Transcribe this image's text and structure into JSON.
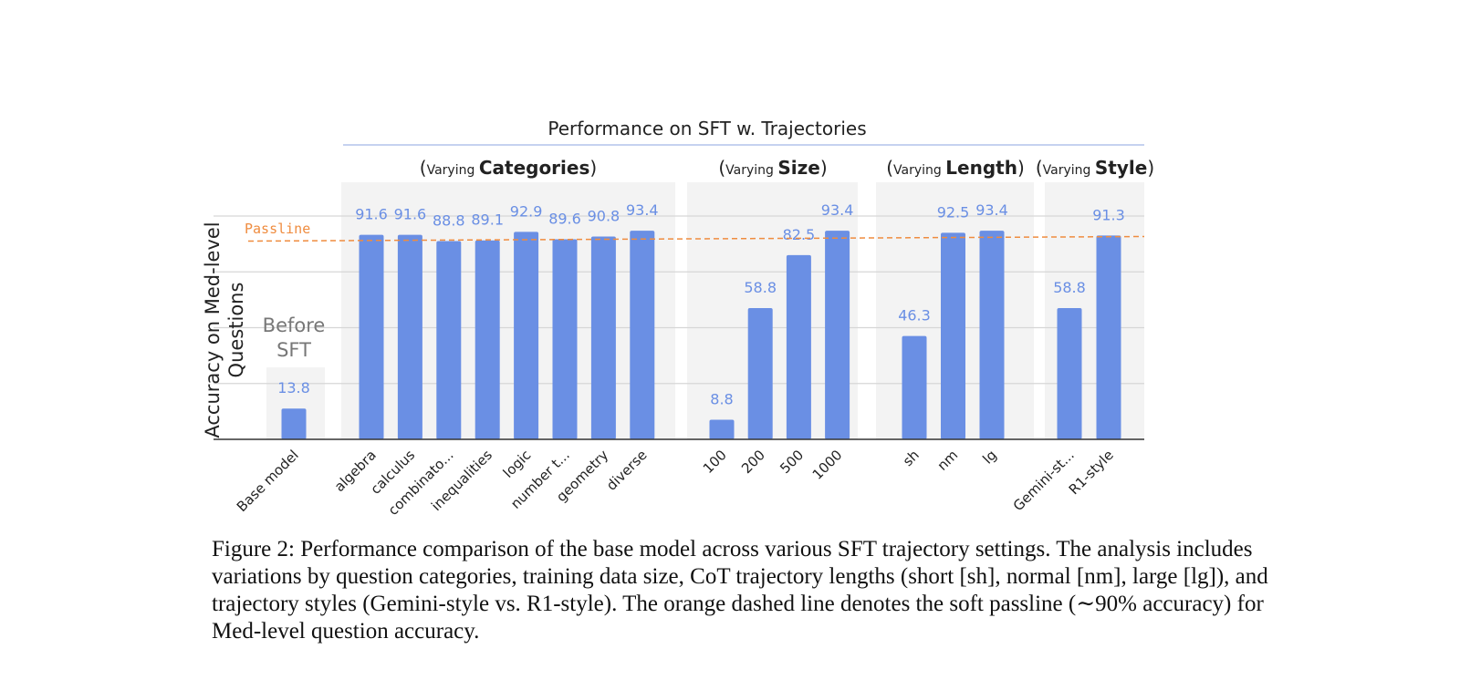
{
  "chart_data": {
    "type": "bar",
    "title": "Performance on SFT w. Trajectories",
    "ylabel": "Accuracy on Med-level Questions",
    "ylabel_lines": [
      "Accuracy on Med-level",
      "Questions"
    ],
    "ylim": [
      0,
      100
    ],
    "grid": true,
    "gridlines": [
      0,
      25,
      50,
      75,
      100
    ],
    "bar_color": "#6a8fe4",
    "label_color": "#6a8fe4",
    "passline": {
      "label": "Passline",
      "value": 90,
      "color": "#ef8c3f"
    },
    "groups": [
      {
        "name": "base",
        "header_prefix": "",
        "header_bold": "",
        "panel_label": [
          "Before",
          "SFT"
        ],
        "categories": [
          "Base model"
        ],
        "values": [
          13.8
        ]
      },
      {
        "name": "categories",
        "header_prefix": "Varying",
        "header_bold": "Categories",
        "categories": [
          "algebra",
          "calculus",
          "combinato...",
          "inequalities",
          "logic",
          "number t...",
          "geometry",
          "diverse"
        ],
        "values": [
          91.6,
          91.6,
          88.8,
          89.1,
          92.9,
          89.6,
          90.8,
          93.4
        ]
      },
      {
        "name": "size",
        "header_prefix": "Varying",
        "header_bold": "Size",
        "categories": [
          "100",
          "200",
          "500",
          "1000"
        ],
        "values": [
          8.8,
          58.8,
          82.5,
          93.4
        ]
      },
      {
        "name": "length",
        "header_prefix": "Varying",
        "header_bold": "Length",
        "categories": [
          "sh",
          "nm",
          "lg"
        ],
        "values": [
          46.3,
          92.5,
          93.4
        ]
      },
      {
        "name": "style",
        "header_prefix": "Varying",
        "header_bold": "Style",
        "categories": [
          "Gemini-st...",
          "R1-style"
        ],
        "values": [
          58.8,
          91.3
        ]
      }
    ]
  },
  "caption": {
    "label": "Figure 2:",
    "text": "Performance comparison of the base model across various SFT trajectory settings. The analysis includes variations by question categories, training data size, CoT trajectory lengths (short [sh], normal [nm], large [lg]), and trajectory styles (Gemini-style vs. R1-style). The orange dashed line denotes the soft passline (∼90% accuracy) for Med-level question accuracy."
  }
}
